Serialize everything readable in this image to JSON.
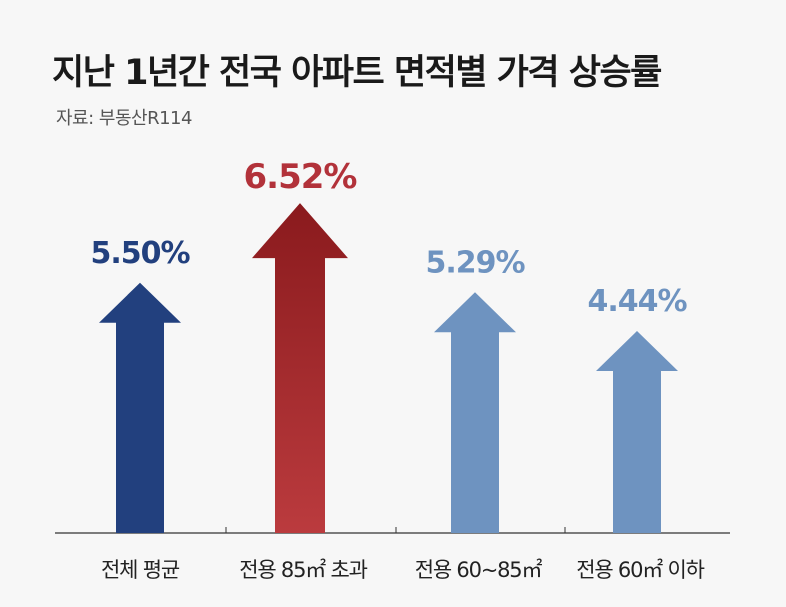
{
  "title": "지난 1년간 전국 아파트 면적별 가격 상승률",
  "source": "자료: 부동산R114",
  "chart_data": {
    "type": "bar",
    "title": "지난 1년간 전국 아파트 면적별 가격 상승률",
    "categories": [
      "전체 평균",
      "전용 85㎡ 초과",
      "전용 60~85㎡",
      "전용 60㎡ 이하"
    ],
    "values": [
      5.5,
      6.52,
      5.29,
      4.44
    ],
    "value_labels": [
      "5.50%",
      "6.52%",
      "5.29%",
      "4.44%"
    ],
    "colors": [
      "#22407e",
      "#a82a2e",
      "#6e93c0",
      "#6e93c0"
    ],
    "label_colors": [
      "#22407e",
      "#b2323a",
      "#6e93c0",
      "#6e93c0"
    ],
    "highlight_index": 1,
    "unit": "%",
    "grid": false,
    "legend": "none",
    "xlabel": "",
    "ylabel": ""
  }
}
